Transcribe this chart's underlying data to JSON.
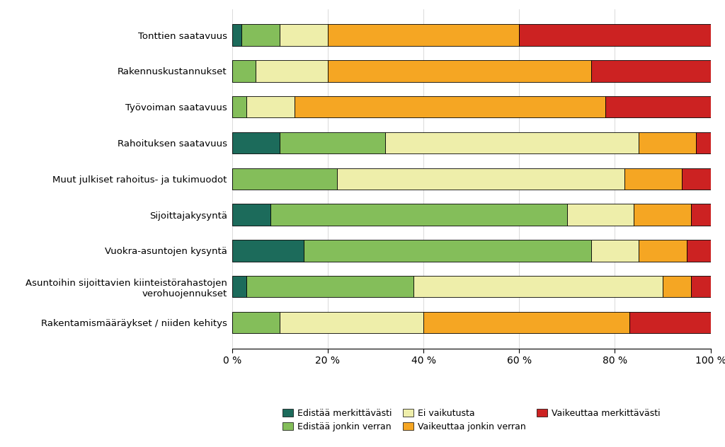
{
  "categories": [
    "Tonttien saatavuus",
    "Rakennuskustannukset",
    "Työvoiman saatavuus",
    "Rahoituksen saatavuus",
    "Muut julkiset rahoitus- ja tukimuodot",
    "Sijoittajakysyntä",
    "Vuokra-asuntojen kysyntä",
    "Asuntoihin sijoittavien kiinteistörahastojen\nverohuojennukset",
    "Rakentamismääräykset / niiden kehitys"
  ],
  "series": {
    "Edistää merkittävästi": [
      2,
      0,
      0,
      10,
      0,
      8,
      15,
      3,
      0
    ],
    "Edistää jonkin verran": [
      8,
      5,
      3,
      22,
      22,
      62,
      60,
      35,
      10
    ],
    "Ei vaikutusta": [
      10,
      15,
      10,
      53,
      60,
      14,
      10,
      52,
      30
    ],
    "Vaikeuttaa jonkin verran": [
      40,
      55,
      65,
      12,
      12,
      12,
      10,
      6,
      43
    ],
    "Vaikeuttaa merkittävästi": [
      40,
      25,
      22,
      3,
      6,
      4,
      5,
      4,
      17
    ]
  },
  "colors": {
    "Edistää merkittävästi": "#1c6b5b",
    "Edistää jonkin verran": "#84be5a",
    "Ei vaikutusta": "#eeeeaa",
    "Vaikeuttaa jonkin verran": "#f5a623",
    "Vaikeuttaa merkittävästi": "#cc2222"
  },
  "legend_order": [
    "Edistää merkittävästi",
    "Edistää jonkin verran",
    "Ei vaikutusta",
    "Vaikeuttaa jonkin verran",
    "Vaikeuttaa merkittävästi"
  ],
  "background_color": "#ffffff",
  "bar_height": 0.6,
  "figwidth": 10.24,
  "figheight": 6.32,
  "dpi": 100
}
